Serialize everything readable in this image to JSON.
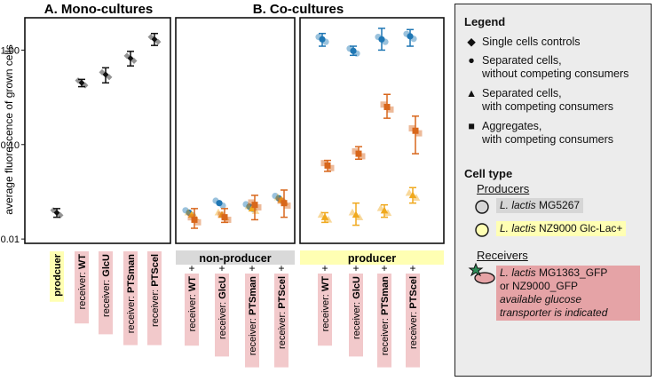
{
  "chart_data": {
    "type": "scatter",
    "ylabel": "average fluorescence of grown cells",
    "yscale": "log",
    "ylim": [
      0.009,
      2.2
    ],
    "yticks": [
      0.01,
      0.1,
      1.0
    ],
    "ytick_labels": [
      "0.01",
      "0.10",
      "1.00"
    ],
    "panels": [
      {
        "id": "A",
        "title": "A. Mono-cultures",
        "categories": [
          "prodcuer",
          "receiver: WT",
          "receiver: GlcU",
          "receiver: PTSman",
          "receiver: PTScel"
        ],
        "category_parts": [
          [
            "prodcuer",
            ""
          ],
          [
            "receiver: ",
            "WT"
          ],
          [
            "receiver: ",
            "GlcU"
          ],
          [
            "receiver: ",
            "PTSman"
          ],
          [
            "receiver: ",
            "PTScel"
          ]
        ],
        "series": [
          {
            "name": "Single cells controls",
            "color": "#111111",
            "marker": "diamond",
            "values": [
              0.019,
              0.45,
              0.55,
              0.82,
              1.3
            ],
            "err_low": [
              0.017,
              0.41,
              0.45,
              0.68,
              1.12
            ],
            "err_high": [
              0.021,
              0.49,
              0.65,
              0.97,
              1.5
            ]
          }
        ]
      },
      {
        "id": "B1",
        "title": "B. Co-cultures",
        "group_label": "non-producer",
        "categories": [
          "receiver: WT",
          "receiver: GlcU",
          "receiver: PTSman",
          "receiver: PTScel"
        ],
        "category_parts": [
          [
            "receiver: ",
            "WT"
          ],
          [
            "receiver: ",
            "GlcU"
          ],
          [
            "receiver: ",
            "PTSman"
          ],
          [
            "receiver: ",
            "PTScel"
          ]
        ],
        "series": [
          {
            "name": "Separated cells, without competing consumers",
            "color": "#1f77b4",
            "marker": "circle",
            "values": [
              0.019,
              0.024,
              0.022,
              0.027
            ]
          },
          {
            "name": "Separated cells, with competing consumers",
            "color": "#f0a91e",
            "marker": "triangle",
            "values": [
              0.018,
              0.018,
              0.021,
              0.026
            ]
          },
          {
            "name": "Aggregates, with competing consumers",
            "color": "#d8671c",
            "marker": "square",
            "values": [
              0.016,
              0.017,
              0.023,
              0.024
            ],
            "err_low": [
              0.013,
              0.015,
              0.016,
              0.017
            ],
            "err_high": [
              0.021,
              0.021,
              0.029,
              0.033
            ]
          }
        ]
      },
      {
        "id": "B2",
        "group_label": "producer",
        "plus_mark": "+",
        "categories": [
          "receiver: WT",
          "receiver: GlcU",
          "receiver: PTSman",
          "receiver: PTScel"
        ],
        "category_parts": [
          [
            "receiver: ",
            "WT"
          ],
          [
            "receiver: ",
            "GlcU"
          ],
          [
            "receiver: ",
            "PTSman"
          ],
          [
            "receiver: ",
            "PTScel"
          ]
        ],
        "series": [
          {
            "name": "Separated cells, without competing consumers",
            "color": "#1f77b4",
            "marker": "circle",
            "values": [
              1.3,
              0.98,
              1.3,
              1.4
            ],
            "err_low": [
              1.1,
              0.88,
              1.0,
              1.1
            ],
            "err_high": [
              1.5,
              1.1,
              1.7,
              1.65
            ]
          },
          {
            "name": "Separated cells, with competing consumers",
            "color": "#f0a91e",
            "marker": "triangle",
            "values": [
              0.017,
              0.018,
              0.02,
              0.029
            ],
            "err_low": [
              0.015,
              0.014,
              0.017,
              0.024
            ],
            "err_high": [
              0.019,
              0.024,
              0.023,
              0.035
            ]
          },
          {
            "name": "Aggregates, with competing consumers",
            "color": "#d8671c",
            "marker": "square",
            "values": [
              0.06,
              0.08,
              0.25,
              0.14
            ],
            "err_low": [
              0.052,
              0.07,
              0.19,
              0.08
            ],
            "err_high": [
              0.068,
              0.095,
              0.34,
              0.2
            ]
          }
        ]
      }
    ]
  },
  "legend": {
    "title": "Legend",
    "items": [
      {
        "marker": "◆",
        "color": "#111111",
        "line1": "Single cells controls",
        "line2": ""
      },
      {
        "marker": "●",
        "color": "#1f77b4",
        "line1": "Separated cells,",
        "line2": "without competing consumers"
      },
      {
        "marker": "▲",
        "color": "#f0a91e",
        "line1": "Separated cells,",
        "line2": "with competing consumers"
      },
      {
        "marker": "■",
        "color": "#d8671c",
        "line1": "Aggregates,",
        "line2": "with competing consumers"
      }
    ]
  },
  "cell_type": {
    "title": "Cell type",
    "producers_title": "Producers",
    "producer1": {
      "species": "L. lactis",
      "strain": " MG5267",
      "color": "#d6d6d6"
    },
    "producer2": {
      "species": "L. lactis",
      "strain": " NZ9000 Glc-Lac+",
      "color": "#ffffb3"
    },
    "receivers_title": "Receivers",
    "receiver": {
      "species": "L. lactis",
      "strain": " MG1363_GFP",
      "line2": "or NZ9000_GFP",
      "line3": "available glucose",
      "line4": "transporter is indicated",
      "color": "#e5a3a6"
    }
  },
  "colors": {
    "receiver_label_bg": "#f2c9cb",
    "producer_label_bg": "#ffffb3",
    "nonproducer_bar": "#d9d9d9",
    "producer_bar": "#ffffb3"
  }
}
